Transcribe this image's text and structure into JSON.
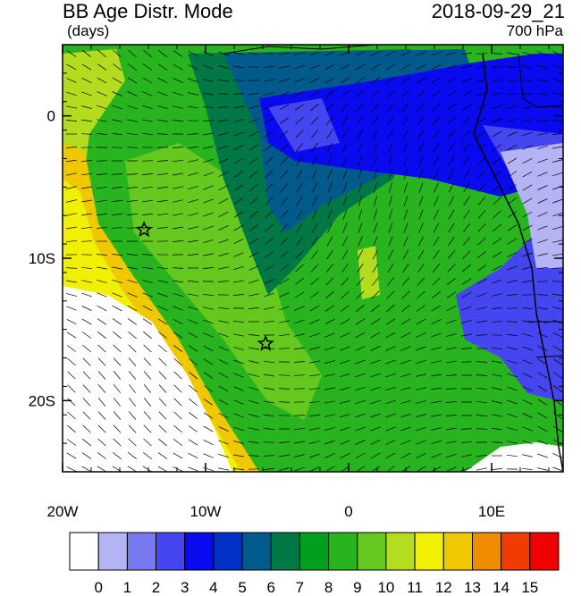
{
  "header": {
    "title": "BB Age Distr. Mode",
    "units": "(days)",
    "datetime": "2018-09-29_21",
    "level": "700 hPa"
  },
  "axes": {
    "lat_ticks": [
      {
        "label": "0",
        "lat": 0
      },
      {
        "label": "10S",
        "lat": -10
      },
      {
        "label": "20S",
        "lat": -20
      }
    ],
    "lon_ticks": [
      {
        "label": "20W",
        "lon": -20
      },
      {
        "label": "10W",
        "lon": -10
      },
      {
        "label": "0",
        "lon": 0
      },
      {
        "label": "10E",
        "lon": 10
      }
    ],
    "lon_range": [
      -20,
      15
    ],
    "lat_range": [
      -25,
      5
    ]
  },
  "markers": [
    {
      "name": "star-marker-1",
      "lon": -14.3,
      "lat": -8.0
    },
    {
      "name": "star-marker-2",
      "lon": -5.8,
      "lat": -16.0
    }
  ],
  "colorbar": {
    "labels": [
      "0",
      "1",
      "2",
      "3",
      "4",
      "5",
      "6",
      "7",
      "8",
      "9",
      "10",
      "11",
      "12",
      "13",
      "14",
      "15"
    ],
    "colors": [
      "#ffffff",
      "#b4b4f5",
      "#7878f0",
      "#4646f0",
      "#0a0af0",
      "#0032c8",
      "#005a8c",
      "#007846",
      "#00a01e",
      "#28b41e",
      "#64c81e",
      "#b4dc1e",
      "#f0f000",
      "#f0c800",
      "#f08c00",
      "#f03c00",
      "#f00000"
    ]
  }
}
